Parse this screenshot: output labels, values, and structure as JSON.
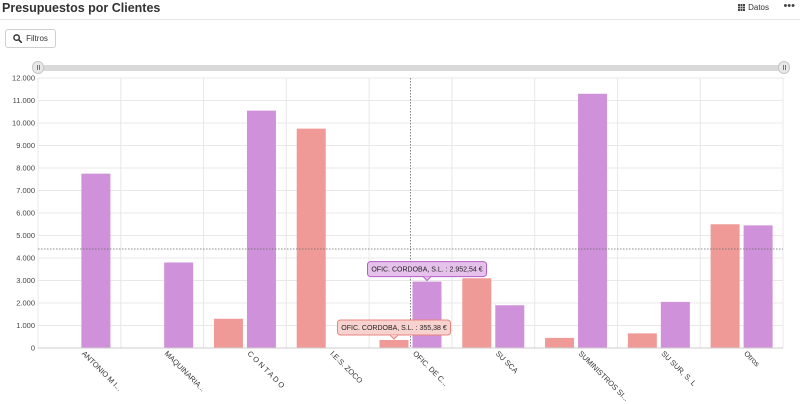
{
  "header": {
    "title": "Presupuestos por Clientes",
    "datos_label": "Datos",
    "more_label": "•••"
  },
  "toolbar": {
    "filter_label": "Filtros"
  },
  "colors": {
    "purple": "#CF91D9",
    "salmon": "#EF9A97",
    "grid": "#E8E8E8",
    "tooltip_purple_border": "#B45FC8",
    "tooltip_salmon_border": "#E9837F"
  },
  "chart_data": {
    "type": "bar",
    "ylim": [
      0,
      12000
    ],
    "yticks": [
      0,
      1000,
      2000,
      3000,
      4000,
      5000,
      6000,
      7000,
      8000,
      9000,
      10000,
      11000,
      12000
    ],
    "ytick_labels": [
      "0",
      "1.000",
      "2.000",
      "3.000",
      "4.000",
      "5.000",
      "6.000",
      "7.000",
      "8.000",
      "9.000",
      "10.000",
      "11.000",
      "12.000"
    ],
    "categories": [
      "ANTONIO M I...",
      "MAQUINARIA...",
      "C O N T A D O",
      "I.E.S. ZOCO",
      "OFIC. DE C...",
      "SU SCA",
      "SUMINISTROS SI...",
      "SU SUR, S. L",
      "Otros"
    ],
    "series": [
      {
        "color": "#EF9A97",
        "values": [
          0,
          0,
          1300,
          9750,
          355.38,
          3100,
          450,
          650,
          5500
        ]
      },
      {
        "color": "#CF91D9",
        "values": [
          7750,
          3800,
          10550,
          0,
          2952.54,
          1900,
          11300,
          2050,
          5450
        ]
      }
    ],
    "average_line": 4400,
    "crosshair_category": "OFIC. DE C...",
    "tooltips": [
      {
        "text": "OFIC. CORDOBA, S.L. : 2.952,54 €",
        "series": 1,
        "category": 4
      },
      {
        "text": "OFIC. CORDOBA, S.L. : 355,38 €",
        "series": 0,
        "category": 4
      }
    ],
    "grid": true,
    "legend": "none"
  }
}
